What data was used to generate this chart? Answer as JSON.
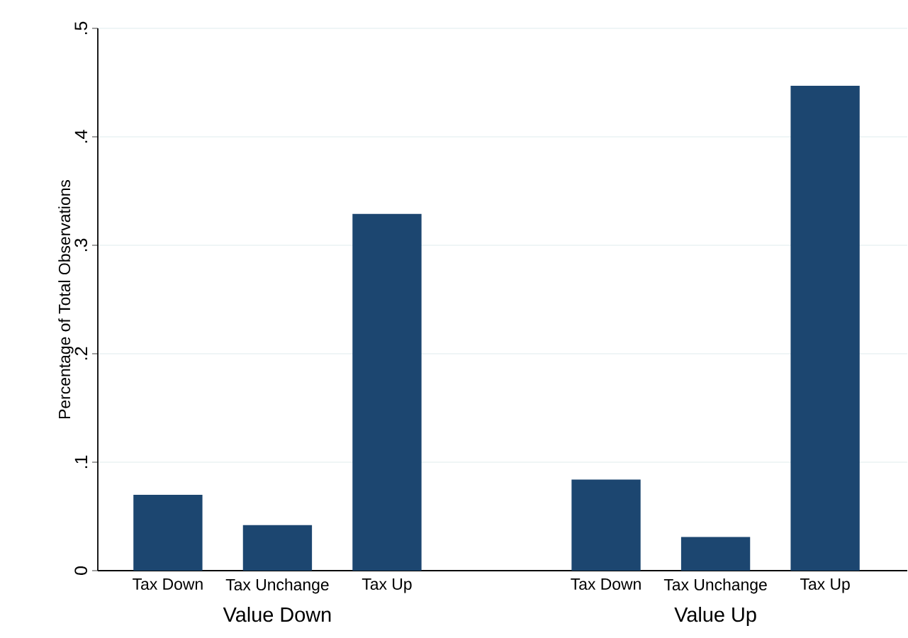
{
  "chart_data": {
    "type": "bar",
    "categories": [
      "Tax Down",
      "Tax Unchange",
      "Tax Up",
      null,
      "Tax Down",
      "Tax Unchange",
      "Tax Up"
    ],
    "values": [
      0.07,
      0.042,
      0.329,
      null,
      0.084,
      0.031,
      0.447
    ],
    "color": "#1c4670",
    "ylabel": "Percentage of Total Observations",
    "ylim": [
      0,
      0.5
    ],
    "yticks": [
      0,
      {
        "value": 0.1,
        "label": ".1"
      },
      {
        "value": 0.2,
        "label": ".2"
      },
      {
        "value": 0.3,
        "label": ".3"
      },
      {
        "value": 0.4,
        "label": ".4"
      },
      {
        "value": 0.5,
        "label": ".5"
      }
    ],
    "grid": "y",
    "annotations": [
      "Value Down",
      "Value Up"
    ]
  }
}
